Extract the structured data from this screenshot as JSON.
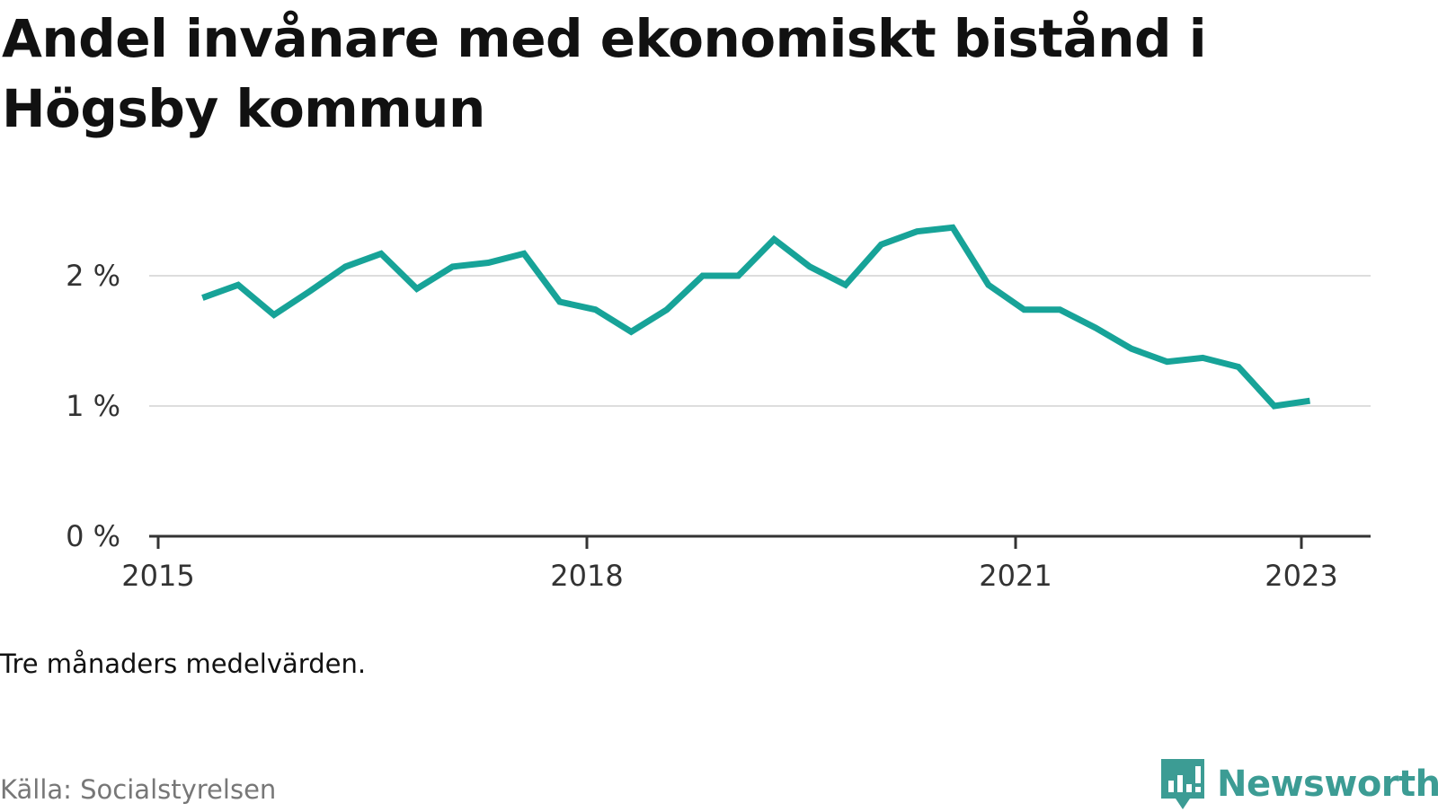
{
  "title": "Andel invånare med ekonomiskt bistånd i Högsby kommun",
  "note": "Tre månaders medelvärden.",
  "source": "Källa: Socialstyrelsen",
  "brand": {
    "name": "Newsworthy",
    "icon": "newsworthy-logo-icon",
    "color": "#3c9c94"
  },
  "chart_data": {
    "type": "line",
    "title": "Andel invånare med ekonomiskt bistånd i Högsby kommun",
    "xlabel": "",
    "ylabel": "",
    "xlim": [
      2015,
      2023.5
    ],
    "ylim": [
      0,
      2.5
    ],
    "x_ticks": [
      {
        "value": 2015,
        "label": "2015"
      },
      {
        "value": 2018,
        "label": "2018"
      },
      {
        "value": 2021,
        "label": "2021"
      },
      {
        "value": 2023,
        "label": "2023"
      }
    ],
    "y_ticks": [
      {
        "value": 0,
        "label": "0 %"
      },
      {
        "value": 1,
        "label": "1 %"
      },
      {
        "value": 2,
        "label": "2 %"
      }
    ],
    "grid": true,
    "legend": "none",
    "color": "#17a398",
    "series": [
      {
        "x": [
          2015.31,
          2015.56,
          2015.81,
          2016.06,
          2016.31,
          2016.56,
          2016.81,
          2017.06,
          2017.31,
          2017.56,
          2017.81,
          2018.06,
          2018.31,
          2018.56,
          2018.81,
          2019.06,
          2019.31,
          2019.56,
          2019.81,
          2020.06,
          2020.31,
          2020.56,
          2020.81,
          2021.06,
          2021.31,
          2021.56,
          2021.81,
          2022.06,
          2022.31,
          2022.56,
          2022.81,
          2023.06
        ],
        "values": [
          1.83,
          1.93,
          1.7,
          1.88,
          2.07,
          2.17,
          1.9,
          2.07,
          2.1,
          2.17,
          1.8,
          1.74,
          1.57,
          1.74,
          2.0,
          2.0,
          2.28,
          2.07,
          1.93,
          2.24,
          2.34,
          2.37,
          1.93,
          1.74,
          1.74,
          1.6,
          1.44,
          1.34,
          1.37,
          1.3,
          1.0,
          1.04
        ]
      }
    ]
  }
}
